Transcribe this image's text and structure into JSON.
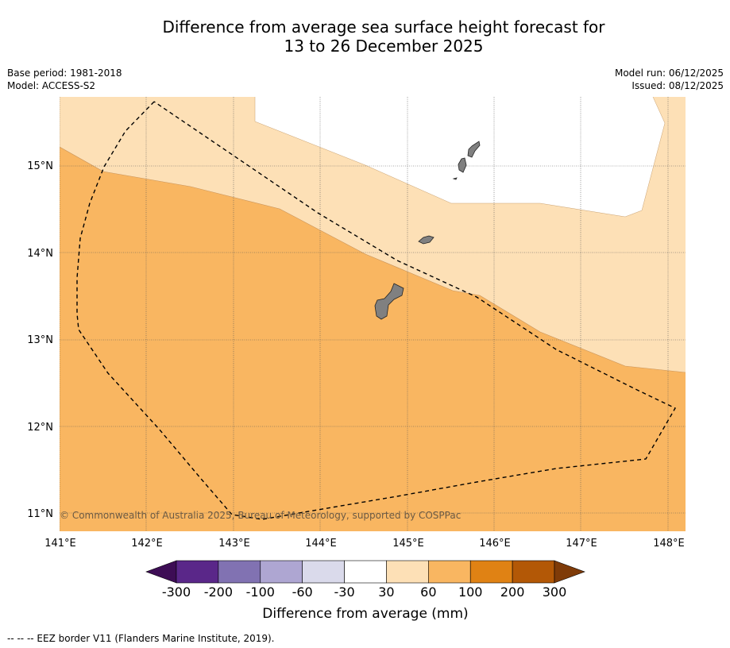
{
  "title_line1": "Difference from average sea surface height forecast for",
  "title_line2": "13 to 26 December 2025",
  "base_period": "Base period: 1981-2018",
  "model": "Model: ACCESS-S2",
  "model_run": "Model run: 06/12/2025",
  "issued": "Issued: 08/12/2025",
  "copyright": "© Commonwealth of Australia 2025, Bureau of Meteorology, supported by COSPPac",
  "footer": "-- -- -- EEZ border V11 (Flanders Marine Institute, 2019).",
  "colors": {
    "band_30_60": "#fde0b6",
    "band_60_100": "#f9b661",
    "land": "#808080",
    "grid": "#555555"
  },
  "map_axes": {
    "lon_labels": [
      "141°E",
      "142°E",
      "143°E",
      "144°E",
      "145°E",
      "146°E",
      "147°E",
      "148°E"
    ],
    "lat_labels": [
      "15°N",
      "14°N",
      "13°N",
      "12°N",
      "11°N"
    ]
  },
  "colorbar": {
    "title": "Difference from average (mm)",
    "ticks": [
      "-300",
      "-200",
      "-100",
      "-60",
      "-30",
      "30",
      "60",
      "100",
      "200",
      "300"
    ],
    "colors": [
      "#3d0d55",
      "#5a2789",
      "#8172b2",
      "#aea6d2",
      "#dadaeb",
      "#ffffff",
      "#fde0b6",
      "#f9b661",
      "#e08214",
      "#b35806",
      "#7f3b08"
    ]
  }
}
